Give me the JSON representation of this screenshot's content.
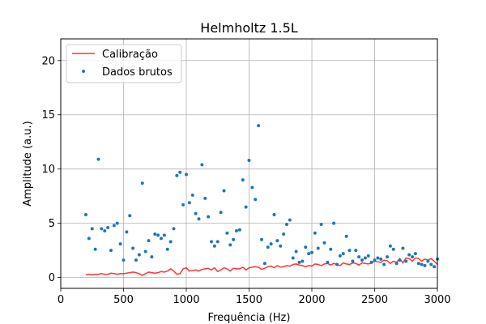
{
  "chart_data": {
    "type": "scatter",
    "title": "Helmholtz 1.5L",
    "xlabel": "Frequência (Hz)",
    "ylabel": "Amplitude (a.u.)",
    "xlim": [
      0,
      3000
    ],
    "ylim": [
      -1,
      22
    ],
    "xticks": [
      0,
      500,
      1000,
      1500,
      2000,
      2500,
      3000
    ],
    "xtick_labels": [
      "0",
      "500",
      "1000",
      "1500",
      "2000",
      "2500",
      "3000"
    ],
    "yticks": [
      0,
      5,
      10,
      15,
      20
    ],
    "ytick_labels": [
      "0",
      "5",
      "10",
      "15",
      "20"
    ],
    "grid": true,
    "legend_position": "top-left",
    "colors": {
      "line": "#ff0000",
      "scatter": "#1f77b4"
    },
    "series": [
      {
        "name": "Calibração",
        "kind": "line",
        "x": [
          200,
          225,
          250,
          275,
          300,
          325,
          350,
          375,
          400,
          425,
          450,
          475,
          500,
          525,
          550,
          575,
          600,
          625,
          650,
          675,
          700,
          725,
          750,
          775,
          800,
          825,
          850,
          875,
          900,
          925,
          950,
          975,
          1000,
          1025,
          1050,
          1075,
          1100,
          1125,
          1150,
          1175,
          1200,
          1225,
          1250,
          1275,
          1300,
          1325,
          1350,
          1375,
          1400,
          1425,
          1450,
          1475,
          1500,
          1525,
          1550,
          1575,
          1600,
          1625,
          1650,
          1675,
          1700,
          1725,
          1750,
          1775,
          1800,
          1825,
          1850,
          1875,
          1900,
          1925,
          1950,
          1975,
          2000,
          2025,
          2050,
          2075,
          2100,
          2125,
          2150,
          2175,
          2200,
          2225,
          2250,
          2275,
          2300,
          2325,
          2350,
          2375,
          2400,
          2425,
          2450,
          2475,
          2500,
          2525,
          2550,
          2575,
          2600,
          2625,
          2650,
          2675,
          2700,
          2725,
          2750,
          2775,
          2800,
          2825,
          2850,
          2875,
          2900,
          2925,
          2950,
          2975,
          3000
        ],
        "y": [
          0.25,
          0.3,
          0.25,
          0.3,
          0.3,
          0.35,
          0.3,
          0.3,
          0.4,
          0.35,
          0.3,
          0.35,
          0.35,
          0.4,
          0.45,
          0.5,
          0.45,
          0.35,
          0.2,
          0.35,
          0.5,
          0.45,
          0.4,
          0.45,
          0.55,
          0.5,
          0.6,
          0.8,
          0.6,
          0.3,
          0.35,
          0.8,
          0.9,
          0.6,
          0.65,
          0.7,
          0.6,
          0.75,
          0.8,
          0.85,
          0.7,
          0.9,
          0.55,
          0.7,
          0.9,
          0.8,
          0.6,
          0.85,
          0.8,
          0.8,
          0.95,
          0.7,
          0.9,
          0.95,
          1.0,
          0.95,
          0.75,
          0.85,
          1.0,
          1.05,
          0.9,
          1.1,
          0.95,
          1.0,
          1.1,
          1.05,
          1.2,
          1.25,
          1.15,
          1.1,
          1.0,
          1.1,
          1.05,
          1.25,
          1.2,
          1.1,
          1.25,
          1.3,
          1.15,
          1.3,
          1.2,
          1.1,
          1.35,
          1.25,
          1.2,
          1.35,
          1.3,
          1.15,
          1.35,
          1.3,
          1.25,
          1.35,
          1.5,
          1.45,
          1.4,
          1.6,
          1.55,
          1.3,
          1.5,
          1.4,
          1.75,
          1.35,
          1.8,
          1.75,
          1.5,
          1.8,
          1.75,
          1.5,
          1.7,
          1.6,
          1.75,
          1.5,
          1.2
        ]
      },
      {
        "name": "Dados brutos",
        "kind": "scatter",
        "x": [
          200,
          225,
          250,
          275,
          300,
          325,
          350,
          375,
          400,
          425,
          450,
          475,
          500,
          525,
          550,
          575,
          600,
          625,
          650,
          675,
          700,
          725,
          750,
          775,
          800,
          825,
          850,
          875,
          900,
          925,
          950,
          975,
          1000,
          1025,
          1050,
          1075,
          1100,
          1125,
          1150,
          1175,
          1200,
          1225,
          1250,
          1275,
          1300,
          1325,
          1350,
          1375,
          1400,
          1425,
          1450,
          1475,
          1500,
          1525,
          1550,
          1575,
          1600,
          1625,
          1650,
          1675,
          1700,
          1725,
          1750,
          1775,
          1800,
          1825,
          1850,
          1875,
          1900,
          1925,
          1950,
          1975,
          2000,
          2025,
          2050,
          2075,
          2100,
          2125,
          2150,
          2175,
          2200,
          2225,
          2250,
          2275,
          2300,
          2325,
          2350,
          2375,
          2400,
          2425,
          2450,
          2475,
          2500,
          2525,
          2550,
          2575,
          2600,
          2625,
          2650,
          2675,
          2700,
          2725,
          2750,
          2775,
          2800,
          2825,
          2850,
          2875,
          2900,
          2925,
          2950,
          2975,
          3000
        ],
        "y": [
          5.8,
          3.6,
          4.5,
          2.6,
          10.9,
          4.5,
          4.3,
          4.6,
          2.5,
          4.8,
          5.0,
          3.1,
          1.6,
          4.2,
          5.7,
          2.7,
          1.6,
          2.1,
          8.7,
          2.4,
          3.4,
          1.9,
          4.0,
          3.9,
          3.6,
          3.9,
          2.6,
          3.3,
          4.5,
          9.4,
          9.7,
          6.7,
          9.5,
          6.9,
          7.6,
          5.9,
          5.4,
          10.4,
          7.3,
          5.6,
          3.3,
          2.9,
          3.3,
          6.0,
          8.0,
          4.1,
          3.0,
          3.5,
          4.3,
          4.4,
          9.0,
          6.5,
          10.8,
          8.3,
          7.2,
          14.0,
          3.5,
          1.3,
          2.8,
          3.1,
          5.8,
          3.4,
          2.9,
          4.0,
          4.9,
          5.3,
          1.8,
          2.4,
          1.4,
          1.5,
          2.8,
          2.2,
          2.3,
          4.1,
          2.7,
          4.9,
          3.2,
          1.4,
          2.6,
          5.0,
          1.2,
          2.0,
          2.2,
          3.8,
          2.5,
          1.5,
          2.5,
          1.9,
          1.6,
          1.8,
          2.0,
          1.4,
          1.6,
          1.8,
          1.7,
          1.2,
          1.9,
          2.9,
          2.6,
          1.3,
          1.6,
          2.7,
          1.5,
          2.1,
          1.9,
          2.2,
          1.3,
          1.2,
          1.1,
          1.5,
          1.2,
          1.0,
          1.7
        ]
      }
    ]
  }
}
